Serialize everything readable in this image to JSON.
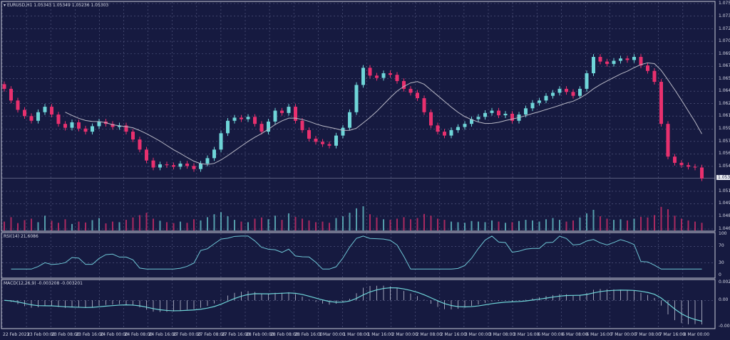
{
  "header": {
    "symbol": "EURUSD,H1",
    "ohlc": "1.05343 1.05349 1.05236 1.05303"
  },
  "colors": {
    "background": "#161a40",
    "grid": "#5a5f86",
    "up_candle": "#6fd5d8",
    "down_candle": "#e8306e",
    "moving_average": "#b9b9c6",
    "rsi_line": "#6fc7d6",
    "macd_histogram": "#d8dbe8",
    "macd_signal": "#6fd5d8"
  },
  "chart_data": [
    {
      "type": "candlestick",
      "panel": "price",
      "price_axis_labels": [
        "1.07545",
        "1.07385",
        "1.07220",
        "1.07060",
        "1.06900",
        "1.06740",
        "1.06580",
        "1.06420",
        "1.06260",
        "1.06100",
        "1.05935",
        "1.05775",
        "1.05615",
        "1.05455",
        "1.05135",
        "1.04975",
        "1.04815",
        "1.04650"
      ],
      "current_price": "1.05303",
      "ylim": [
        1.0465,
        1.07545
      ],
      "grid": true,
      "close": [
        1.0645,
        1.063,
        1.0618,
        1.061,
        1.0604,
        1.0615,
        1.0622,
        1.0612,
        1.06,
        1.0595,
        1.0602,
        1.0594,
        1.059,
        1.0597,
        1.0603,
        1.06,
        1.0596,
        1.0598,
        1.059,
        1.058,
        1.0567,
        1.0553,
        1.0544,
        1.0548,
        1.0547,
        1.0545,
        1.0549,
        1.0546,
        1.0542,
        1.0549,
        1.0556,
        1.0567,
        1.0588,
        1.0604,
        1.0608,
        1.0606,
        1.0609,
        1.06,
        1.059,
        1.0603,
        1.0617,
        1.0614,
        1.0622,
        1.0604,
        1.0592,
        1.0581,
        1.0577,
        1.0574,
        1.0572,
        1.0585,
        1.0595,
        1.0615,
        1.065,
        1.0672,
        1.0662,
        1.0659,
        1.0665,
        1.0663,
        1.0655,
        1.0645,
        1.064,
        1.0633,
        1.0615,
        1.0598,
        1.059,
        1.0585,
        1.0592,
        1.0596,
        1.06,
        1.0606,
        1.0609,
        1.0614,
        1.0617,
        1.0611,
        1.0613,
        1.0604,
        1.0612,
        1.062,
        1.0627,
        1.063,
        1.0636,
        1.064,
        1.0645,
        1.0641,
        1.0636,
        1.0645,
        1.0665,
        1.0686,
        1.068,
        1.0677,
        1.0681,
        1.0684,
        1.0682,
        1.0686,
        1.0675,
        1.0668,
        1.0654,
        1.06,
        1.0558,
        1.055,
        1.0547,
        1.0545,
        1.0544,
        1.053
      ],
      "volume": [
        30,
        45,
        25,
        35,
        40,
        28,
        50,
        33,
        26,
        38,
        22,
        30,
        27,
        35,
        42,
        24,
        30,
        28,
        36,
        44,
        52,
        60,
        40,
        33,
        28,
        25,
        30,
        26,
        38,
        34,
        45,
        55,
        62,
        48,
        36,
        30,
        28,
        40,
        44,
        38,
        50,
        36,
        58,
        46,
        40,
        34,
        28,
        30,
        26,
        42,
        48,
        60,
        75,
        82,
        55,
        44,
        38,
        36,
        40,
        45,
        38,
        42,
        56,
        50,
        40,
        36,
        30,
        28,
        26,
        32,
        30,
        28,
        34,
        30,
        26,
        28,
        32,
        36,
        34,
        30,
        38,
        42,
        36,
        30,
        34,
        44,
        58,
        70,
        48,
        40,
        36,
        38,
        34,
        40,
        46,
        44,
        52,
        80,
        72,
        50,
        40,
        34,
        30,
        26
      ]
    },
    {
      "type": "line",
      "panel": "rsi",
      "label": "RSI(14) 21.6086",
      "axis_labels": [
        "100",
        "70",
        "30",
        "0"
      ],
      "ylim": [
        0,
        100
      ]
    },
    {
      "type": "bar",
      "panel": "macd",
      "label": "MACD(12,26,9) -0.003208 -0.003201",
      "axis_labels": [
        "0.002463",
        "0.00",
        "-0.003579"
      ],
      "ylim": [
        -0.003579,
        0.002463
      ]
    }
  ],
  "time_axis": [
    "22 Feb 2023",
    "23 Feb 00:00",
    "23 Feb 08:00",
    "23 Feb 16:00",
    "24 Feb 00:00",
    "24 Feb 08:00",
    "24 Feb 16:00",
    "27 Feb 00:00",
    "27 Feb 08:00",
    "27 Feb 16:00",
    "28 Feb 00:00",
    "28 Feb 08:00",
    "28 Feb 16:00",
    "1 Mar 00:00",
    "1 Mar 08:00",
    "1 Mar 16:00",
    "2 Mar 00:00",
    "2 Mar 08:00",
    "2 Mar 16:00",
    "3 Mar 00:00",
    "3 Mar 08:00",
    "3 Mar 16:00",
    "6 Mar 00:00",
    "6 Mar 08:00",
    "6 Mar 16:00",
    "7 Mar 00:00",
    "7 Mar 08:00",
    "7 Mar 16:00",
    "8 Mar 00:00"
  ]
}
